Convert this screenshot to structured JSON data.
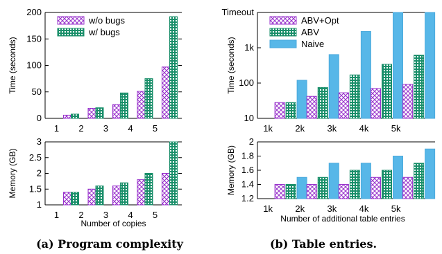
{
  "colors": {
    "purple": "#9933cc",
    "green": "#1a8f6a",
    "blue": "#57b7e8"
  },
  "captions": {
    "left": "(a) Program complexity",
    "right": "(b) Table entries."
  },
  "chart_data": [
    {
      "id": "time-vs-copies",
      "type": "bar",
      "categories": [
        "1",
        "2",
        "3",
        "4",
        "5"
      ],
      "ylabel": "Time (seconds)",
      "xlabel": "",
      "ylim": [
        0,
        200
      ],
      "yticks": [
        "0",
        "50",
        "100",
        "150",
        "200"
      ],
      "grid": false,
      "legend": "top-left",
      "series": [
        {
          "name": "w/o bugs",
          "pattern": "cross",
          "color": "#9933cc",
          "values": [
            6,
            19,
            26,
            51,
            97
          ]
        },
        {
          "name": "w/ bugs",
          "pattern": "dots",
          "color": "#1a8f6a",
          "values": [
            8,
            20,
            48,
            75,
            192
          ]
        }
      ]
    },
    {
      "id": "memory-vs-copies",
      "type": "bar",
      "categories": [
        "1",
        "2",
        "3",
        "4",
        "5"
      ],
      "ylabel": "Memory (GB)",
      "xlabel": "Number of copies",
      "ylim": [
        1,
        3
      ],
      "yticks": [
        "1",
        "1.5",
        "2",
        "2.5",
        "3"
      ],
      "grid": false,
      "series": [
        {
          "name": "w/o bugs",
          "pattern": "cross",
          "color": "#9933cc",
          "values": [
            1.4,
            1.5,
            1.6,
            1.8,
            2.0
          ]
        },
        {
          "name": "w/ bugs",
          "pattern": "dots",
          "color": "#1a8f6a",
          "values": [
            1.4,
            1.6,
            1.7,
            2.0,
            3.0
          ]
        }
      ]
    },
    {
      "id": "time-vs-entries",
      "type": "bar",
      "categories": [
        "1k",
        "2k",
        "3k",
        "4k",
        "5k"
      ],
      "ylabel": "Time (seconds)",
      "xlabel": "",
      "yscale": "log",
      "ylim": [
        10,
        10000
      ],
      "yticks": [
        "10",
        "100",
        "1k",
        "Timeout"
      ],
      "grid": false,
      "legend": "top-left",
      "series": [
        {
          "name": "ABV+Opt",
          "pattern": "cross",
          "color": "#9933cc",
          "values": [
            28,
            42,
            53,
            70,
            92
          ]
        },
        {
          "name": "ABV",
          "pattern": "dots",
          "color": "#1a8f6a",
          "values": [
            28,
            75,
            170,
            340,
            620
          ]
        },
        {
          "name": "Naive",
          "pattern": "solid",
          "color": "#57b7e8",
          "values": [
            120,
            640,
            2900,
            10000,
            10000
          ]
        }
      ]
    },
    {
      "id": "memory-vs-entries",
      "type": "bar",
      "categories": [
        "1k",
        "2k",
        "3k",
        "4k",
        "5k"
      ],
      "ylabel": "Memory (GB)",
      "xlabel": "Number of additional table entries",
      "ylim": [
        1.2,
        2
      ],
      "yticks": [
        "1.2",
        "1.4",
        "1.6",
        "1.8",
        "2"
      ],
      "grid": false,
      "series": [
        {
          "name": "ABV+Opt",
          "pattern": "cross",
          "color": "#9933cc",
          "values": [
            1.4,
            1.4,
            1.4,
            1.5,
            1.5
          ]
        },
        {
          "name": "ABV",
          "pattern": "dots",
          "color": "#1a8f6a",
          "values": [
            1.4,
            1.5,
            1.6,
            1.6,
            1.7
          ]
        },
        {
          "name": "Naive",
          "pattern": "solid",
          "color": "#57b7e8",
          "values": [
            1.5,
            1.7,
            1.7,
            1.8,
            1.9
          ]
        }
      ]
    }
  ]
}
